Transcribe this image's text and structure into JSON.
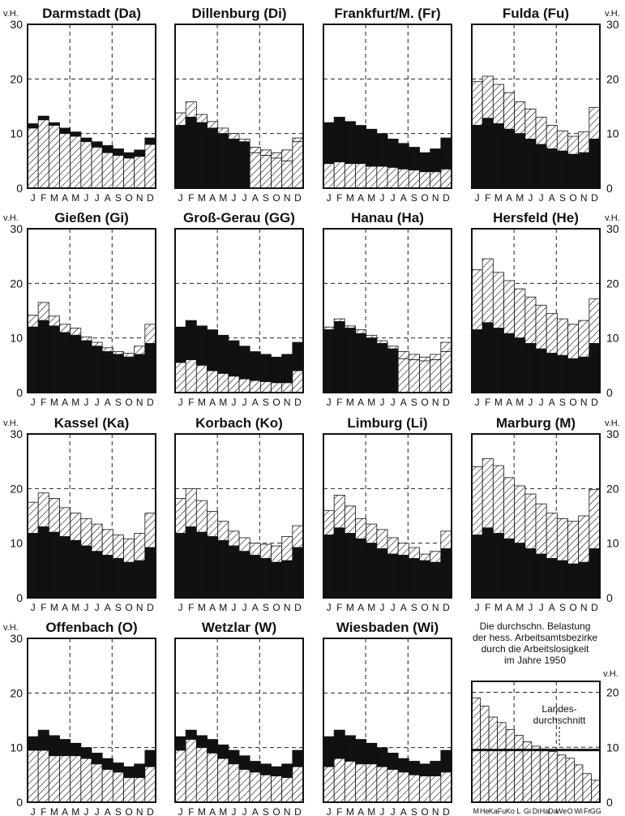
{
  "chart_data": {
    "type": "bar",
    "unit_label": "v.H.",
    "months_label": "JFMAMJJASOND",
    "yticks": [
      0,
      10,
      20,
      30
    ],
    "ylim": [
      0,
      30
    ],
    "panels": [
      {
        "title": "Darmstadt (Da)",
        "total": [
          11.8,
          13.2,
          12.0,
          11.0,
          10.3,
          9.2,
          8.5,
          7.8,
          7.2,
          6.5,
          7.0,
          9.2
        ],
        "lower": [
          11.0,
          12.5,
          11.5,
          10.0,
          9.5,
          8.5,
          7.5,
          6.5,
          6.0,
          5.5,
          5.8,
          8.0
        ]
      },
      {
        "title": "Dillenburg (Di)",
        "total": [
          13.8,
          15.8,
          13.5,
          12.2,
          11.0,
          10.0,
          9.0,
          7.5,
          7.0,
          6.5,
          7.0,
          9.2
        ],
        "lower": [
          11.5,
          13.0,
          12.0,
          11.0,
          10.0,
          9.0,
          8.5,
          6.5,
          6.0,
          5.5,
          5.0,
          8.5
        ]
      },
      {
        "title": "Frankfurt/M. (Fr)",
        "total": [
          12.0,
          13.0,
          12.2,
          11.5,
          10.8,
          10.0,
          9.0,
          8.2,
          7.5,
          6.5,
          7.2,
          9.2
        ],
        "lower": [
          4.5,
          4.8,
          4.5,
          4.5,
          4.0,
          4.0,
          3.8,
          3.5,
          3.3,
          3.0,
          3.0,
          3.5
        ]
      },
      {
        "title": "Fulda (Fu)",
        "total": [
          19.5,
          20.5,
          19.0,
          17.5,
          15.8,
          14.5,
          13.0,
          11.5,
          10.5,
          9.5,
          10.3,
          14.8
        ],
        "lower": [
          11.5,
          12.8,
          11.8,
          10.8,
          10.0,
          9.0,
          8.0,
          7.2,
          6.8,
          6.2,
          6.5,
          9.0
        ]
      },
      {
        "title": "Gießen (Gi)",
        "total": [
          14.2,
          16.5,
          14.0,
          12.5,
          11.8,
          10.2,
          9.2,
          8.2,
          7.5,
          7.2,
          8.5,
          12.5
        ],
        "lower": [
          12.0,
          13.2,
          12.2,
          11.0,
          10.5,
          9.5,
          8.5,
          7.5,
          7.0,
          6.5,
          7.0,
          9.0
        ]
      },
      {
        "title": "Groß-Gerau (GG)",
        "total": [
          12.0,
          13.2,
          12.2,
          11.5,
          10.5,
          9.5,
          8.5,
          7.5,
          7.0,
          6.5,
          7.0,
          9.2
        ],
        "lower": [
          5.5,
          6.0,
          5.0,
          4.0,
          3.5,
          3.0,
          2.5,
          2.2,
          2.0,
          1.8,
          1.8,
          4.0
        ]
      },
      {
        "title": "Hanau (Ha)",
        "total": [
          12.0,
          13.5,
          12.2,
          11.5,
          10.5,
          9.5,
          8.5,
          7.5,
          7.0,
          6.5,
          7.0,
          9.2
        ],
        "lower": [
          11.5,
          13.0,
          11.8,
          10.8,
          10.0,
          9.0,
          8.0,
          6.2,
          6.0,
          5.8,
          6.0,
          7.5
        ]
      },
      {
        "title": "Hersfeld (He)",
        "total": [
          22.5,
          24.5,
          22.0,
          20.5,
          19.0,
          17.5,
          16.0,
          14.5,
          13.5,
          12.5,
          13.2,
          17.2
        ],
        "lower": [
          11.5,
          12.8,
          11.8,
          10.8,
          10.0,
          9.0,
          8.0,
          7.2,
          6.8,
          6.2,
          6.5,
          9.0
        ]
      },
      {
        "title": "Kassel (Ka)",
        "total": [
          17.5,
          19.2,
          18.2,
          16.5,
          15.5,
          14.5,
          13.5,
          12.5,
          11.5,
          10.8,
          11.8,
          15.5
        ],
        "lower": [
          11.8,
          13.0,
          12.0,
          11.2,
          10.5,
          9.5,
          8.5,
          7.8,
          7.2,
          6.5,
          6.8,
          9.2
        ]
      },
      {
        "title": "Korbach (Ko)",
        "total": [
          18.2,
          20.0,
          17.8,
          15.8,
          14.0,
          12.2,
          11.0,
          10.0,
          9.8,
          9.5,
          11.2,
          13.2
        ],
        "lower": [
          11.8,
          13.0,
          12.0,
          11.2,
          10.5,
          9.5,
          8.5,
          7.8,
          7.2,
          6.5,
          6.8,
          9.2
        ]
      },
      {
        "title": "Limburg (Li)",
        "total": [
          16.0,
          18.8,
          16.8,
          14.5,
          13.5,
          12.5,
          11.0,
          10.0,
          9.2,
          8.0,
          8.5,
          12.2
        ],
        "lower": [
          11.5,
          12.8,
          11.8,
          10.8,
          10.0,
          9.0,
          8.0,
          7.8,
          7.2,
          6.8,
          6.5,
          9.0
        ]
      },
      {
        "title": "Marburg (M)",
        "total": [
          24.0,
          25.5,
          24.2,
          22.0,
          20.5,
          19.0,
          17.2,
          15.5,
          14.5,
          14.0,
          15.0,
          19.8
        ],
        "lower": [
          11.5,
          12.8,
          11.8,
          10.8,
          10.0,
          9.0,
          8.0,
          7.2,
          6.8,
          6.2,
          6.5,
          9.0
        ]
      },
      {
        "title": "Offenbach (O)",
        "total": [
          12.0,
          13.2,
          12.2,
          11.5,
          10.8,
          10.0,
          9.0,
          8.0,
          7.2,
          6.5,
          7.0,
          9.5
        ],
        "lower": [
          9.5,
          9.5,
          8.5,
          8.5,
          8.5,
          8.0,
          7.0,
          6.0,
          5.5,
          4.5,
          4.5,
          6.5
        ]
      },
      {
        "title": "Wetzlar (W)",
        "total": [
          12.0,
          13.2,
          12.2,
          11.5,
          10.5,
          9.5,
          8.5,
          7.5,
          7.0,
          6.5,
          7.0,
          9.5
        ],
        "lower": [
          9.5,
          11.5,
          10.0,
          9.0,
          8.0,
          7.0,
          6.0,
          5.5,
          5.0,
          4.8,
          4.5,
          6.5
        ]
      },
      {
        "title": "Wiesbaden (Wi)",
        "total": [
          12.0,
          13.2,
          12.2,
          11.5,
          10.8,
          10.0,
          9.0,
          8.0,
          7.5,
          7.0,
          7.5,
          9.5
        ],
        "lower": [
          6.5,
          8.0,
          7.5,
          7.0,
          7.0,
          6.5,
          6.0,
          5.5,
          5.0,
          4.8,
          4.8,
          5.5
        ]
      }
    ],
    "summary": {
      "note_lines": [
        "Die durchschn. Belastung",
        "der hess. Arbeitsamtsbezirke",
        "durch die Arbeitslosigkeit",
        "im Jahre 1950"
      ],
      "avg_label_lines": [
        "Landes-",
        "durchschnitt"
      ],
      "landesdurchschnitt": 9.5,
      "categories": [
        "M",
        "He",
        "Ka",
        "Fu",
        "Ko",
        "L",
        "Gi",
        "Di",
        "Ha",
        "Da",
        "We",
        "O",
        "Wi",
        "Fr",
        "GG"
      ],
      "values": [
        19.0,
        17.5,
        15.5,
        14.5,
        13.2,
        12.2,
        11.0,
        10.2,
        9.7,
        9.2,
        8.6,
        8.0,
        6.8,
        5.2,
        4.0
      ]
    }
  }
}
